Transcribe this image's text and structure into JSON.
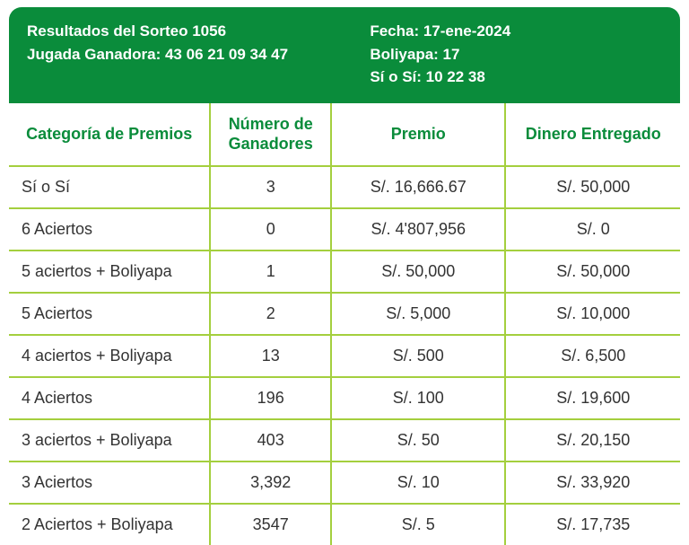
{
  "colors": {
    "header_bg": "#0a8c3b",
    "header_text": "#ffffff",
    "th_text": "#0a8c3b",
    "border": "#a4cf3e",
    "cell_text": "#333333",
    "background": "#ffffff"
  },
  "header": {
    "left": {
      "line1": "Resultados del Sorteo 1056",
      "line2": "Jugada Ganadora: 43 06 21 09 34 47"
    },
    "right": {
      "line1": "Fecha: 17-ene-2024",
      "line2": "Boliyapa: 17",
      "line3": "Sí o Sí: 10 22 38"
    }
  },
  "columns": [
    "Categoría de Premios",
    "Número de Ganadores",
    "Premio",
    "Dinero Entregado"
  ],
  "rows": [
    {
      "cat": "Sí o Sí",
      "winners": "3",
      "prize": "S/. 16,666.67",
      "delivered": "S/. 50,000"
    },
    {
      "cat": "6 Aciertos",
      "winners": "0",
      "prize": "S/. 4'807,956",
      "delivered": "S/. 0"
    },
    {
      "cat": "5 aciertos + Boliyapa",
      "winners": "1",
      "prize": "S/. 50,000",
      "delivered": "S/. 50,000"
    },
    {
      "cat": "5 Aciertos",
      "winners": "2",
      "prize": "S/. 5,000",
      "delivered": "S/. 10,000"
    },
    {
      "cat": "4 aciertos + Boliyapa",
      "winners": "13",
      "prize": "S/. 500",
      "delivered": "S/. 6,500"
    },
    {
      "cat": "4 Aciertos",
      "winners": "196",
      "prize": "S/. 100",
      "delivered": "S/. 19,600"
    },
    {
      "cat": "3 aciertos + Boliyapa",
      "winners": "403",
      "prize": "S/. 50",
      "delivered": "S/. 20,150"
    },
    {
      "cat": "3 Aciertos",
      "winners": "3,392",
      "prize": "S/. 10",
      "delivered": "S/. 33,920"
    },
    {
      "cat": "2 Aciertos + Boliyapa",
      "winners": "3547",
      "prize": "S/. 5",
      "delivered": "S/. 17,735"
    }
  ]
}
